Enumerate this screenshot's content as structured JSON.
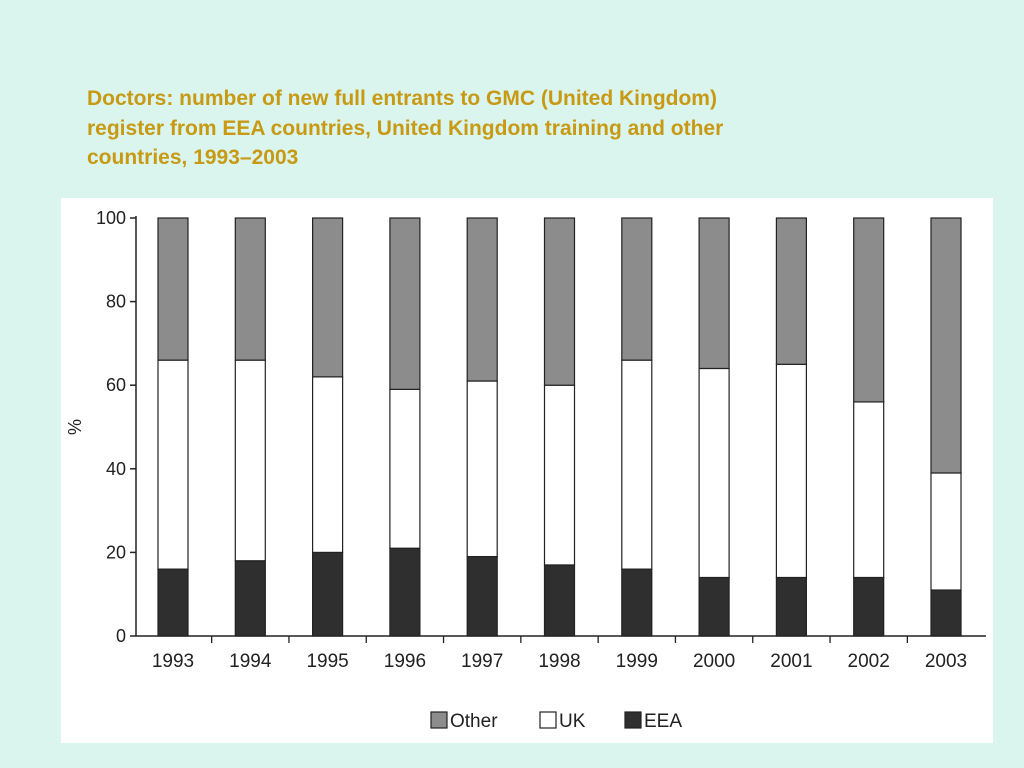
{
  "slide": {
    "title_lines": [
      "Doctors: number of new full entrants to GMC (United Kingdom)",
      "register from EEA countries, United Kingdom training and other",
      "countries, 1993–2003"
    ]
  },
  "chart_data": {
    "type": "bar",
    "stacked": true,
    "title": "",
    "xlabel": "",
    "ylabel": "%",
    "ylim": [
      0,
      100
    ],
    "yticks": [
      0,
      20,
      40,
      60,
      80,
      100
    ],
    "categories": [
      "1993",
      "1994",
      "1995",
      "1996",
      "1997",
      "1998",
      "1999",
      "2000",
      "2001",
      "2002",
      "2003"
    ],
    "series": [
      {
        "name": "EEA",
        "color": "#2f2f2f",
        "values": [
          16,
          18,
          20,
          21,
          19,
          17,
          16,
          14,
          14,
          14,
          11
        ]
      },
      {
        "name": "UK",
        "color": "#ffffff",
        "values": [
          50,
          48,
          42,
          38,
          42,
          43,
          50,
          50,
          51,
          42,
          28
        ]
      },
      {
        "name": "Other",
        "color": "#8c8c8c",
        "values": [
          34,
          34,
          38,
          41,
          39,
          40,
          34,
          36,
          35,
          44,
          61
        ]
      }
    ],
    "legend": {
      "position": "bottom",
      "order": [
        "Other",
        "UK",
        "EEA"
      ]
    },
    "grid": false
  }
}
